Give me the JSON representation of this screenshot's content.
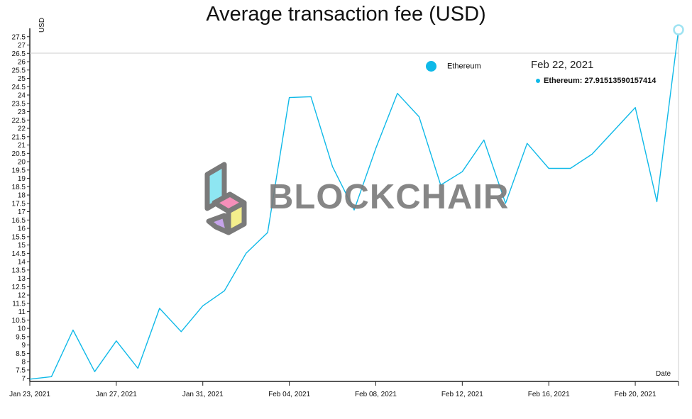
{
  "chart_data": {
    "type": "line",
    "title": "Average transaction fee (USD)",
    "ylabel": "USD",
    "xlabel": "Date",
    "ylim": [
      6.9,
      28.0
    ],
    "yticks": [
      7,
      7.5,
      8,
      8.5,
      9,
      9.5,
      10,
      10.5,
      11,
      11.5,
      12,
      12.5,
      13,
      13.5,
      14,
      14.5,
      15,
      15.5,
      16,
      16.5,
      17,
      17.5,
      18,
      18.5,
      19,
      19.5,
      20,
      20.5,
      21,
      21.5,
      22,
      22.5,
      23,
      23.5,
      24,
      24.5,
      25,
      25.5,
      26,
      26.5,
      27,
      27.5
    ],
    "xticks": [
      {
        "label": "Jan 23, 2021",
        "index": 0
      },
      {
        "label": "Jan 27, 2021",
        "index": 4
      },
      {
        "label": "Jan 31, 2021",
        "index": 8
      },
      {
        "label": "Feb 04, 2021",
        "index": 12
      },
      {
        "label": "Feb 08, 2021",
        "index": 16
      },
      {
        "label": "Feb 12, 2021",
        "index": 20
      },
      {
        "label": "Feb 16, 2021",
        "index": 24
      },
      {
        "label": "Feb 20, 2021",
        "index": 28
      }
    ],
    "x": [
      "2021-01-23",
      "2021-01-24",
      "2021-01-25",
      "2021-01-26",
      "2021-01-27",
      "2021-01-28",
      "2021-01-29",
      "2021-01-30",
      "2021-01-31",
      "2021-02-01",
      "2021-02-02",
      "2021-02-03",
      "2021-02-04",
      "2021-02-05",
      "2021-02-06",
      "2021-02-07",
      "2021-02-08",
      "2021-02-09",
      "2021-02-10",
      "2021-02-11",
      "2021-02-12",
      "2021-02-13",
      "2021-02-14",
      "2021-02-15",
      "2021-02-16",
      "2021-02-17",
      "2021-02-18",
      "2021-02-19",
      "2021-02-20",
      "2021-02-21",
      "2021-02-22"
    ],
    "series": [
      {
        "name": "Ethereum",
        "color": "#0fb9e8",
        "values": [
          6.95,
          7.1,
          9.9,
          7.4,
          9.25,
          7.6,
          11.2,
          9.8,
          11.35,
          12.25,
          14.5,
          15.75,
          23.85,
          23.9,
          19.7,
          17.1,
          20.8,
          24.1,
          22.7,
          18.6,
          19.4,
          21.3,
          17.5,
          21.1,
          19.6,
          19.6,
          20.45,
          21.85,
          23.25,
          17.6,
          27.915
        ]
      }
    ],
    "legend": {
      "position": "top-right",
      "entries": [
        "Ethereum"
      ]
    },
    "tooltip": {
      "date": "Feb 22, 2021",
      "series": "Ethereum",
      "value_text": "Ethereum: 27.91513590157414"
    },
    "watermark": "BLOCKCHAIR",
    "grid": false
  }
}
